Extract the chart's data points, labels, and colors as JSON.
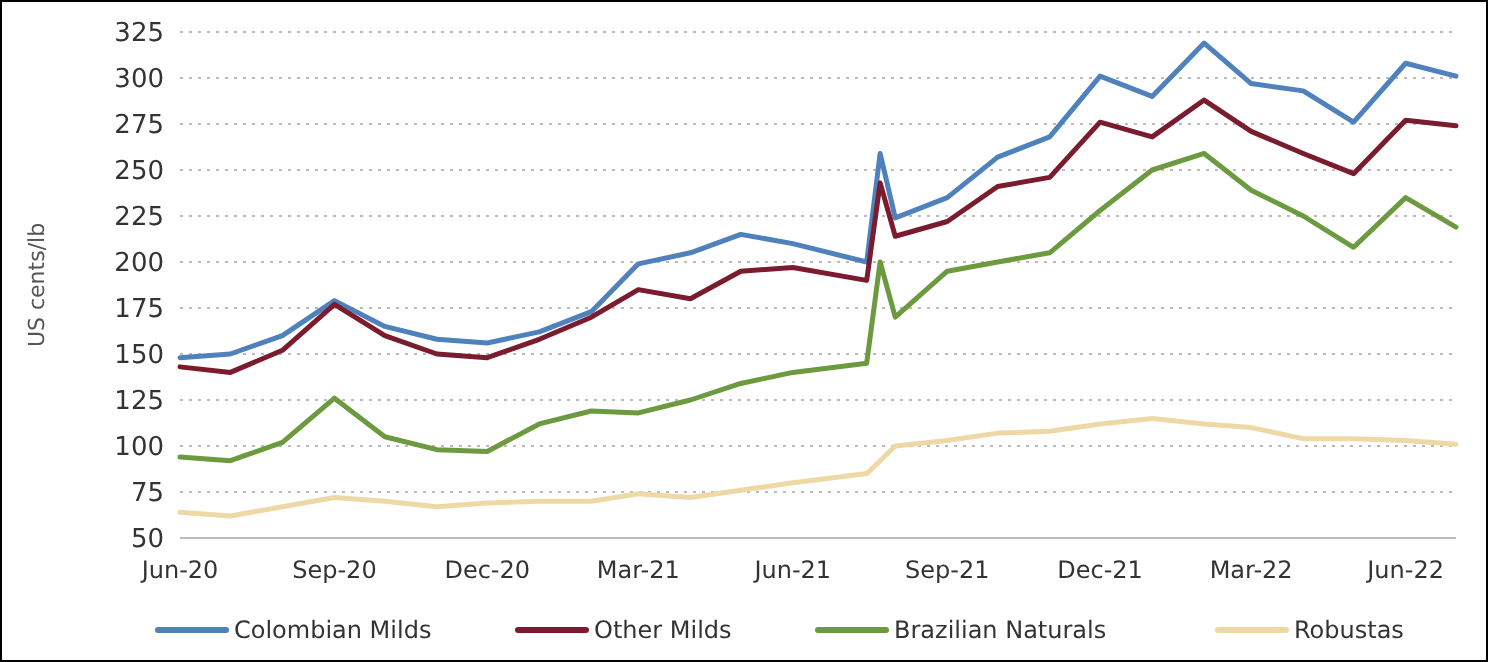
{
  "chart_data": {
    "type": "line",
    "ylabel": "US cents/lb",
    "x": [
      "2020-06-01",
      "2020-07-01",
      "2020-08-01",
      "2020-09-01",
      "2020-10-01",
      "2020-11-01",
      "2020-12-01",
      "2021-01-01",
      "2021-02-01",
      "2021-03-01",
      "2021-04-01",
      "2021-05-01",
      "2021-06-01",
      "2021-07-15",
      "2021-07-23",
      "2021-08-01",
      "2021-09-01",
      "2021-10-01",
      "2021-11-01",
      "2021-12-01",
      "2022-01-01",
      "2022-02-01",
      "2022-03-01",
      "2022-04-01",
      "2022-05-01",
      "2022-06-01",
      "2022-07-01"
    ],
    "series": [
      {
        "name": "Colombian Milds",
        "color": "#4f81bd",
        "values": [
          148,
          150,
          160,
          179,
          165,
          158,
          156,
          162,
          173,
          199,
          205,
          215,
          210,
          200,
          259,
          224,
          235,
          257,
          268,
          301,
          290,
          319,
          297,
          293,
          276,
          308,
          301
        ]
      },
      {
        "name": "Other Milds",
        "color": "#7b1c2e",
        "values": [
          143,
          140,
          152,
          177,
          160,
          150,
          148,
          158,
          170,
          185,
          180,
          195,
          197,
          190,
          243,
          214,
          222,
          241,
          246,
          276,
          268,
          288,
          271,
          259,
          248,
          277,
          274
        ]
      },
      {
        "name": "Brazilian Naturals",
        "color": "#6b9a3f",
        "values": [
          94,
          92,
          102,
          126,
          105,
          98,
          97,
          112,
          119,
          118,
          125,
          134,
          140,
          145,
          200,
          170,
          195,
          200,
          205,
          228,
          250,
          259,
          239,
          225,
          208,
          235,
          219
        ]
      },
      {
        "name": "Robustas",
        "color": "#eed9a6",
        "values": [
          64,
          62,
          67,
          72,
          70,
          67,
          69,
          70,
          70,
          74,
          72,
          76,
          80,
          85,
          92,
          100,
          103,
          107,
          108,
          112,
          115,
          112,
          110,
          104,
          104,
          103,
          101
        ]
      }
    ],
    "xlim": [
      "2020-06-01",
      "2022-07-01"
    ],
    "xticks": [
      {
        "value": "2020-06-01",
        "label": "Jun-20"
      },
      {
        "value": "2020-09-01",
        "label": "Sep-20"
      },
      {
        "value": "2020-12-01",
        "label": "Dec-20"
      },
      {
        "value": "2021-03-01",
        "label": "Mar-21"
      },
      {
        "value": "2021-06-01",
        "label": "Jun-21"
      },
      {
        "value": "2021-09-01",
        "label": "Sep-21"
      },
      {
        "value": "2021-12-01",
        "label": "Dec-21"
      },
      {
        "value": "2022-03-01",
        "label": "Mar-22"
      },
      {
        "value": "2022-06-01",
        "label": "Jun-22"
      }
    ],
    "ylim": [
      50,
      325
    ],
    "yticks": [
      50,
      75,
      100,
      125,
      150,
      175,
      200,
      225,
      250,
      275,
      300,
      325
    ],
    "grid": "y",
    "legend": "bottom",
    "marker": "none",
    "line_style": "solid"
  }
}
